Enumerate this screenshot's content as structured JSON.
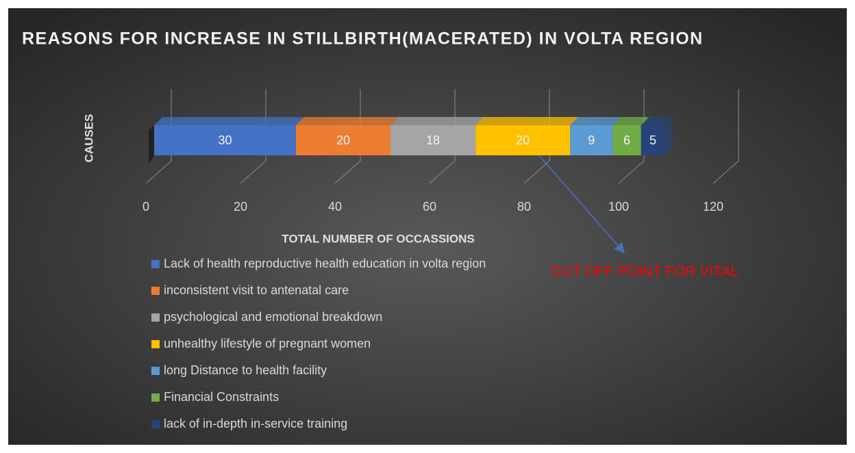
{
  "chart_data": {
    "type": "stacked-bar-horizontal",
    "title": "REASONS FOR INCREASE IN STILLBIRTH(MACERATED) IN VOLTA REGION",
    "x_label": "TOTAL NUMBER OF OCCASSIONS",
    "y_label": "CAUSES",
    "annotation": "CUT OFF POINT FOR VITAL",
    "categories": [
      null
    ],
    "series": [
      {
        "name": "Lack of health reproductive health education in volta region",
        "color": "#4472c4",
        "values": [
          30
        ]
      },
      {
        "name": "inconsistent visit to antenatal care",
        "color": "#ed7d31",
        "values": [
          20
        ]
      },
      {
        "name": "psychological and emotional breakdown",
        "color": "#a5a5a5",
        "values": [
          18
        ]
      },
      {
        "name": "unhealthy lifestyle of pregnant women",
        "color": "#ffc000",
        "values": [
          20
        ]
      },
      {
        "name": "long Distance to health facility",
        "color": "#5b9bd5",
        "values": [
          9
        ]
      },
      {
        "name": "Financial Constraints",
        "color": "#70ad47",
        "values": [
          6
        ]
      },
      {
        "name": "lack of in-depth in-service training",
        "color": "#264478",
        "values": [
          5
        ]
      }
    ],
    "xlim": [
      0,
      120
    ],
    "xticks": [
      0,
      20,
      40,
      60,
      80,
      100,
      120
    ],
    "grid": true,
    "legend": "bottom"
  }
}
